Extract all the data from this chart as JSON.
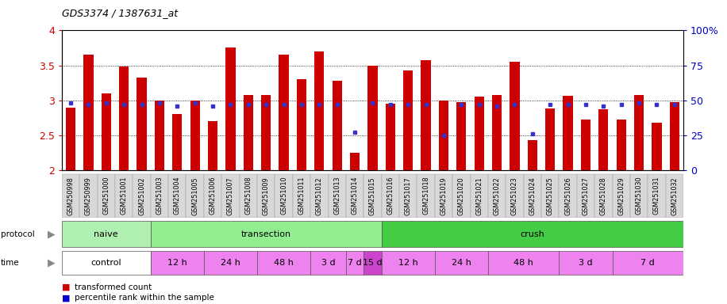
{
  "title": "GDS3374 / 1387631_at",
  "samples": [
    "GSM250998",
    "GSM250999",
    "GSM251000",
    "GSM251001",
    "GSM251002",
    "GSM251003",
    "GSM251004",
    "GSM251005",
    "GSM251006",
    "GSM251007",
    "GSM251008",
    "GSM251009",
    "GSM251010",
    "GSM251011",
    "GSM251012",
    "GSM251013",
    "GSM251014",
    "GSM251015",
    "GSM251016",
    "GSM251017",
    "GSM251018",
    "GSM251019",
    "GSM251020",
    "GSM251021",
    "GSM251022",
    "GSM251023",
    "GSM251024",
    "GSM251025",
    "GSM251026",
    "GSM251027",
    "GSM251028",
    "GSM251029",
    "GSM251030",
    "GSM251031",
    "GSM251032"
  ],
  "transformed_count": [
    2.9,
    3.65,
    3.1,
    3.48,
    3.32,
    3.0,
    2.8,
    3.0,
    2.7,
    3.75,
    3.08,
    3.08,
    3.65,
    3.3,
    3.7,
    3.28,
    2.25,
    3.5,
    2.95,
    3.43,
    3.57,
    3.0,
    2.97,
    3.05,
    3.08,
    3.55,
    2.43,
    2.88,
    3.07,
    2.72,
    2.87,
    2.72,
    3.08,
    2.68,
    2.97
  ],
  "percentile_rank": [
    48,
    47,
    48,
    47,
    47,
    48,
    46,
    48,
    46,
    47,
    47,
    47,
    47,
    47,
    47,
    47,
    27,
    48,
    47,
    47,
    47,
    25,
    47,
    47,
    46,
    47,
    26,
    47,
    47,
    47,
    46,
    47,
    48,
    47,
    47
  ],
  "ylim_left": [
    2.0,
    4.0
  ],
  "ylim_right": [
    0,
    100
  ],
  "yticks_left": [
    2.0,
    2.5,
    3.0,
    3.5,
    4.0
  ],
  "yticks_right": [
    0,
    25,
    50,
    75,
    100
  ],
  "bar_color": "#cc0000",
  "dot_color": "#3333cc",
  "chart_bg": "#ffffff",
  "tick_label_bg": "#d0d0d0",
  "proto_naive_color": "#b0f0b0",
  "proto_transection_color": "#90ee90",
  "proto_crush_color": "#44cc44",
  "time_control_color": "#ffffff",
  "time_pink_color": "#ee82ee",
  "time_dark_pink_color": "#cc44cc",
  "protocol_groups": [
    {
      "label": "naive",
      "start": 0,
      "end": 4,
      "color": "#b0f0b0"
    },
    {
      "label": "transection",
      "start": 5,
      "end": 17,
      "color": "#90ee90"
    },
    {
      "label": "crush",
      "start": 18,
      "end": 34,
      "color": "#44cc44"
    }
  ],
  "time_groups": [
    {
      "label": "control",
      "start": 0,
      "end": 4,
      "color": "#ffffff"
    },
    {
      "label": "12 h",
      "start": 5,
      "end": 7,
      "color": "#ee82ee"
    },
    {
      "label": "24 h",
      "start": 8,
      "end": 10,
      "color": "#ee82ee"
    },
    {
      "label": "48 h",
      "start": 11,
      "end": 13,
      "color": "#ee82ee"
    },
    {
      "label": "3 d",
      "start": 14,
      "end": 15,
      "color": "#ee82ee"
    },
    {
      "label": "7 d",
      "start": 16,
      "end": 16,
      "color": "#ee82ee"
    },
    {
      "label": "15 d",
      "start": 17,
      "end": 17,
      "color": "#cc44cc"
    },
    {
      "label": "12 h",
      "start": 18,
      "end": 20,
      "color": "#ee82ee"
    },
    {
      "label": "24 h",
      "start": 21,
      "end": 23,
      "color": "#ee82ee"
    },
    {
      "label": "48 h",
      "start": 24,
      "end": 27,
      "color": "#ee82ee"
    },
    {
      "label": "3 d",
      "start": 28,
      "end": 30,
      "color": "#ee82ee"
    },
    {
      "label": "7 d",
      "start": 31,
      "end": 34,
      "color": "#ee82ee"
    }
  ]
}
